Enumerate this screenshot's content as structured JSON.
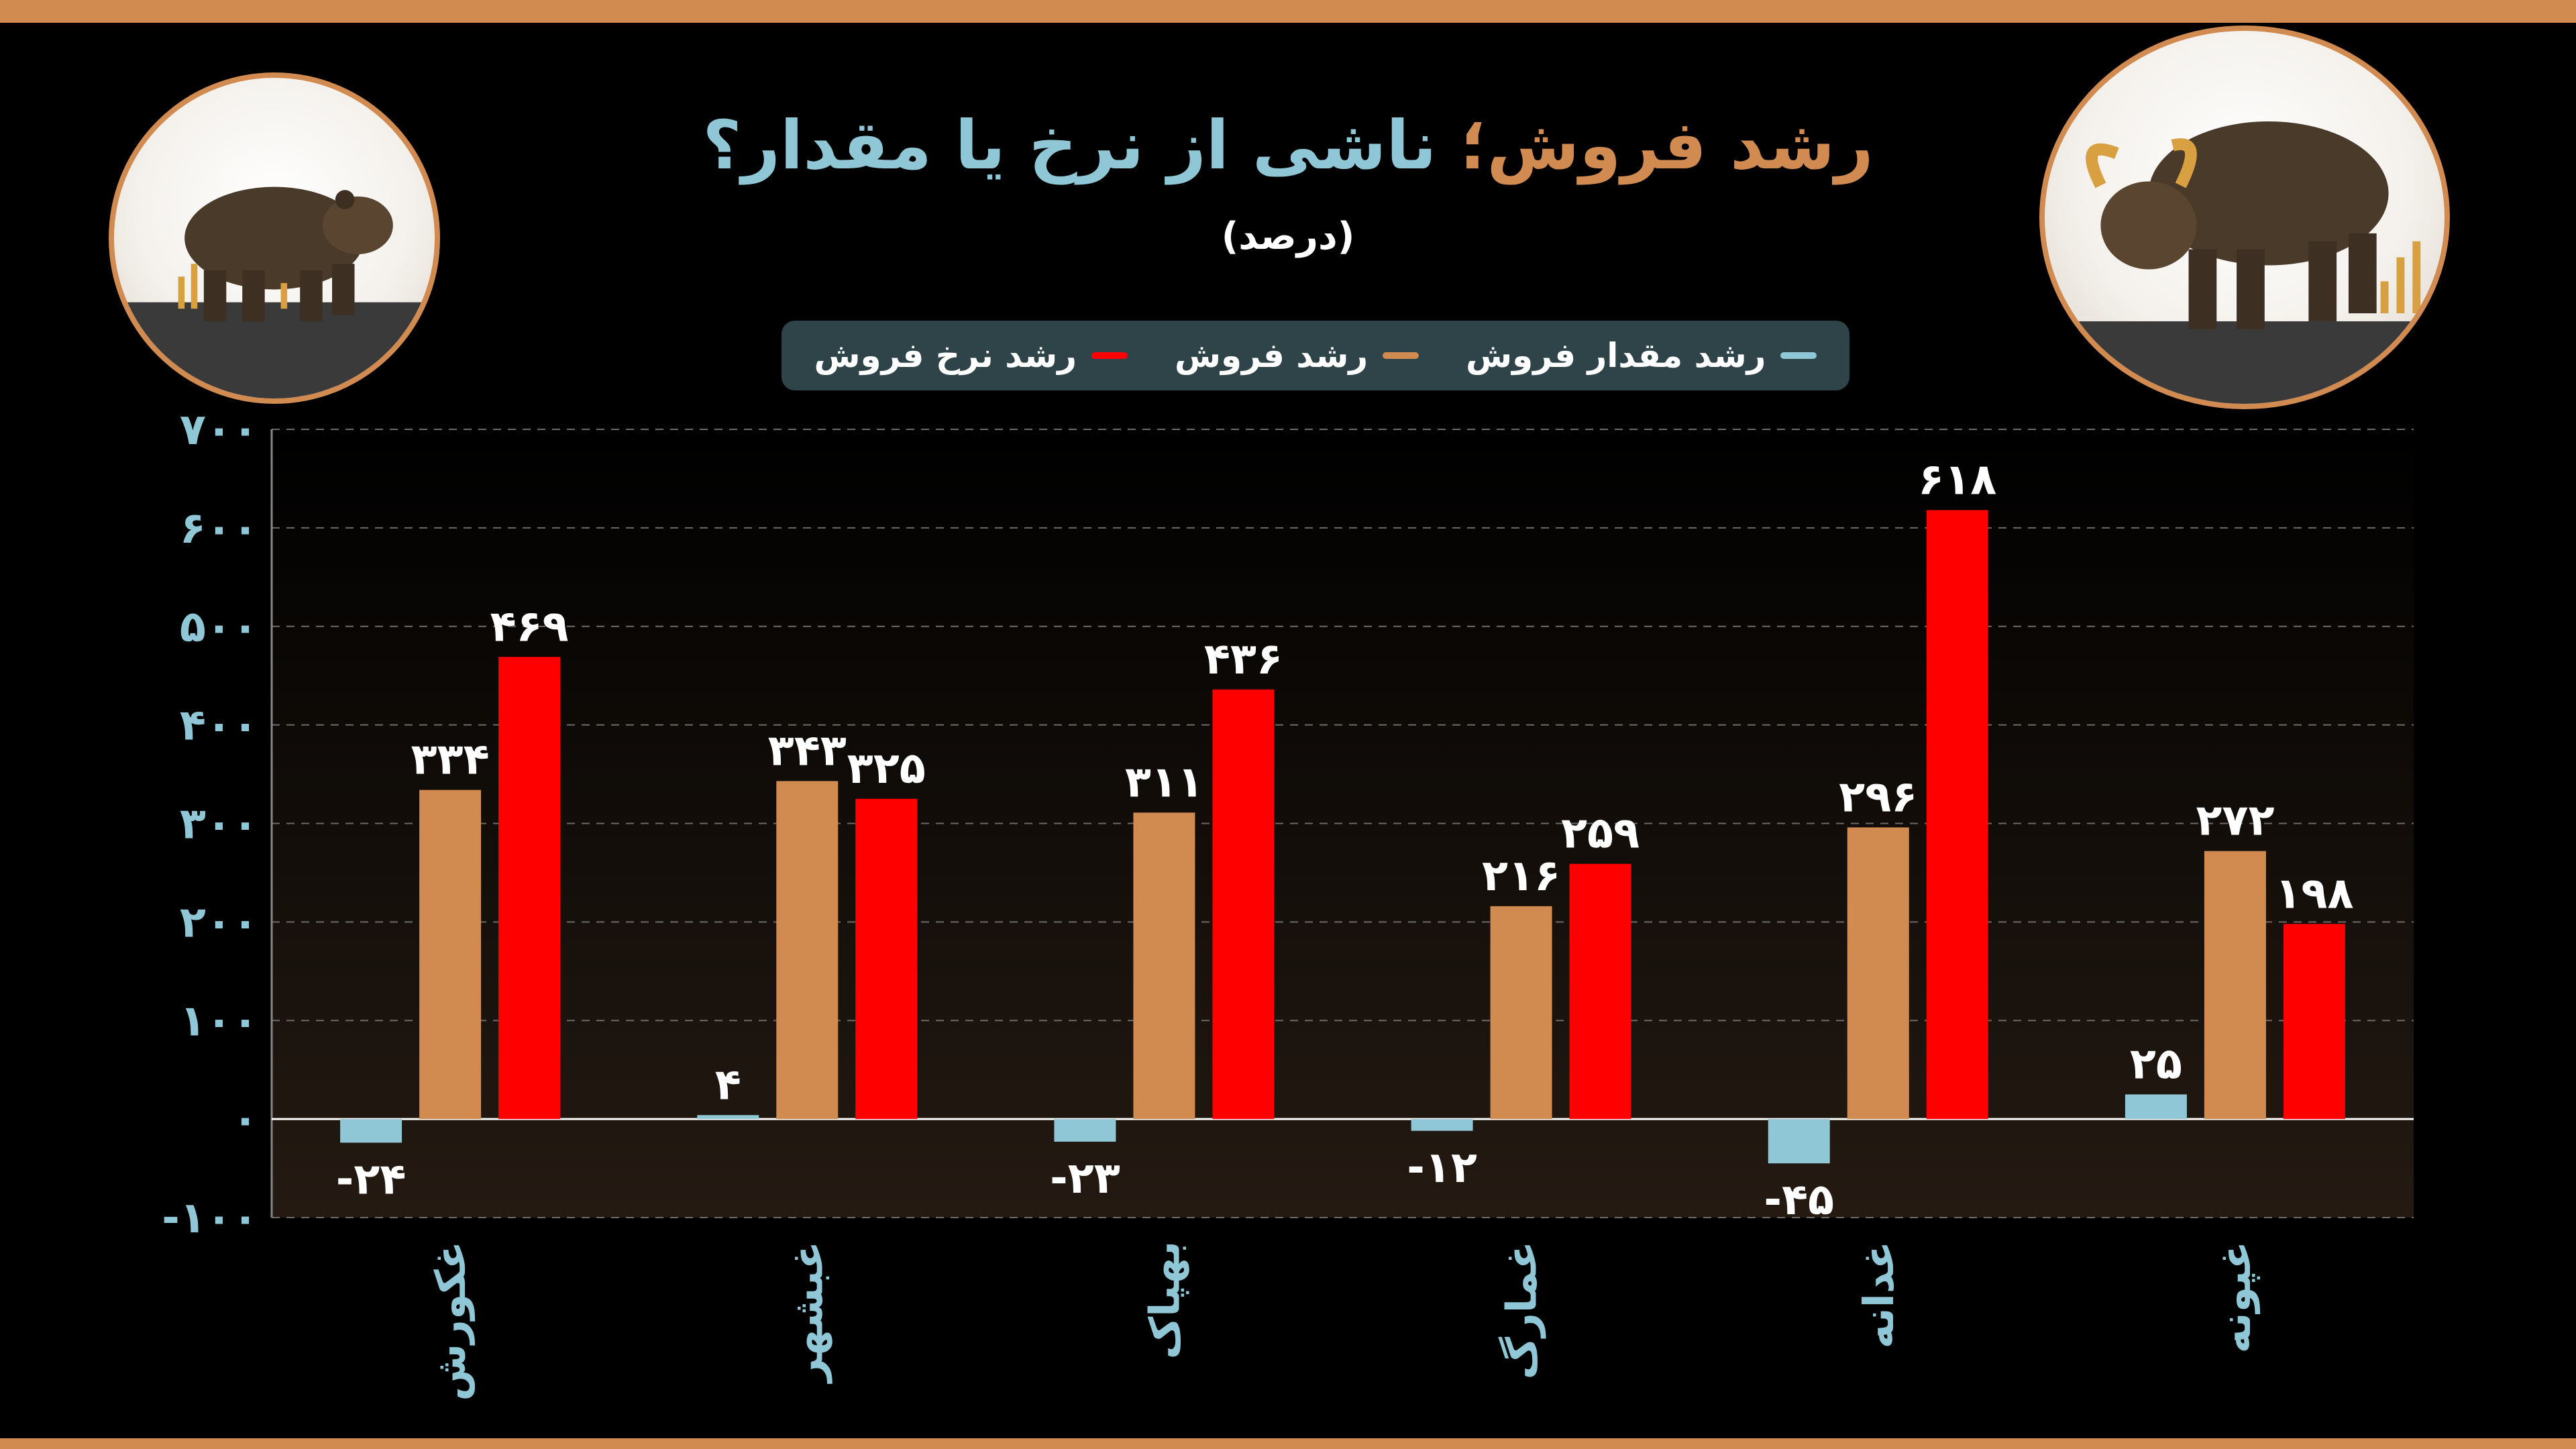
{
  "title": {
    "accent_part": "رشد فروش؛",
    "main_part": "ناشی از نرخ یا مقدار؟"
  },
  "subtitle": "(درصد)",
  "colors": {
    "background": "#000000",
    "stripe": "#d18a4f",
    "quantity_growth": "#8fc7d6",
    "sales_growth": "#d18a4f",
    "price_growth": "#ff0000",
    "axis_text": "#8fc7d6",
    "grid": "#6b6b6b",
    "legend_bg": "#2e4449"
  },
  "icons": {
    "left": "bear-icon",
    "right": "bull-icon"
  },
  "chart_data": {
    "type": "bar",
    "title": "رشد فروش؛ ناشی از نرخ یا مقدار؟",
    "subtitle": "(درصد)",
    "categories": [
      "غکورش",
      "غبشهر",
      "بهپاک",
      "غمارگ",
      "غدانه",
      "غپونه"
    ],
    "series": [
      {
        "name": "رشد مقدار فروش",
        "color": "#8fc7d6",
        "values": [
          -24,
          4,
          -23,
          -12,
          -45,
          25
        ],
        "labels": [
          "-۲۴",
          "۴",
          "-۲۳",
          "-۱۲",
          "-۴۵",
          "۲۵"
        ]
      },
      {
        "name": "رشد فروش",
        "color": "#d18a4f",
        "values": [
          334,
          343,
          311,
          216,
          296,
          272
        ],
        "labels": [
          "۳۳۴",
          "۳۴۳",
          "۳۱۱",
          "۲۱۶",
          "۲۹۶",
          "۲۷۲"
        ]
      },
      {
        "name": "رشد نرخ فروش",
        "color": "#ff0000",
        "values": [
          469,
          325,
          436,
          259,
          618,
          198
        ],
        "labels": [
          "۴۶۹",
          "۳۲۵",
          "۴۳۶",
          "۲۵۹",
          "۶۱۸",
          "۱۹۸"
        ]
      }
    ],
    "ylim": [
      -100,
      700
    ],
    "yticks": [
      700,
      600,
      500,
      400,
      300,
      200,
      100,
      0,
      -100
    ],
    "ytick_labels": [
      "۷۰۰",
      "۶۰۰",
      "۵۰۰",
      "۴۰۰",
      "۳۰۰",
      "۲۰۰",
      "۱۰۰",
      "۰",
      "-۱۰۰"
    ],
    "grid": true,
    "legend_position": "top-center"
  }
}
